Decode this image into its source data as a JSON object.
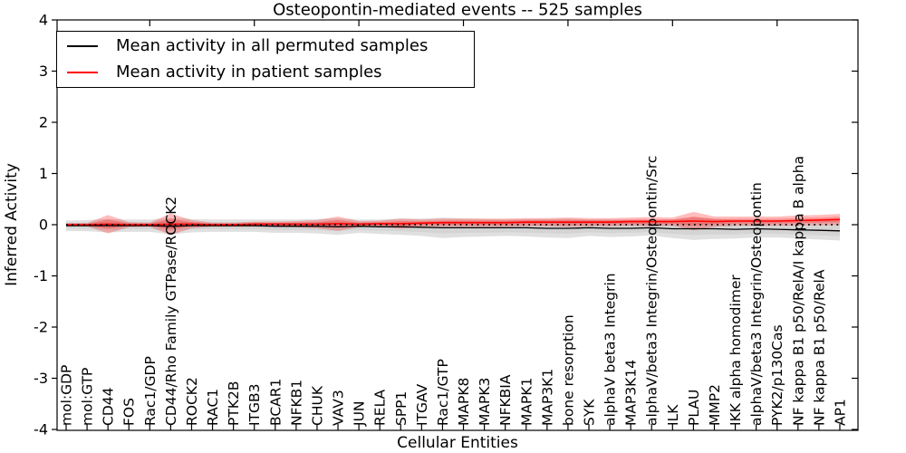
{
  "title": "Osteopontin-mediated events -- 525 samples",
  "axes": {
    "ylabel": "Inferred Activity",
    "xlabel": "Cellular Entities",
    "ytick_labels": [
      "4",
      "3",
      "2",
      "1",
      "0",
      "-1",
      "-2",
      "-3",
      "-4"
    ],
    "ytick_values": [
      4,
      3,
      2,
      1,
      0,
      -1,
      -2,
      -3,
      -4
    ]
  },
  "legend": {
    "items": [
      {
        "label": "Mean activity in all permuted samples",
        "color": "#000000"
      },
      {
        "label": "Mean activity in patient samples",
        "color": "#ff0000"
      }
    ]
  },
  "chart_data": {
    "type": "line",
    "title": "Osteopontin-mediated events -- 525 samples",
    "xlabel": "Cellular Entities",
    "ylabel": "Inferred Activity",
    "ylim": [
      -4,
      4
    ],
    "grid": false,
    "legend_position": "upper left",
    "zero_line": {
      "style": "dotted",
      "y": 0,
      "color": "#000000"
    },
    "band_colors": {
      "permuted": "#000000",
      "patient": "#ff0000"
    },
    "categories": [
      "mol:GDP",
      "mol:GTP",
      "CD44",
      "FOS",
      "Rac1/GDP",
      "CD44/Rho Family GTPase/ROCK2",
      "ROCK2",
      "RAC1",
      "PTK2B",
      "ITGB3",
      "BCAR1",
      "NFKB1",
      "CHUK",
      "VAV3",
      "JUN",
      "RELA",
      "SPP1",
      "ITGAV",
      "Rac1/GTP",
      "MAPK8",
      "MAPK3",
      "NFKBIA",
      "MAPK1",
      "MAP3K1",
      "bone resorption",
      "SYK",
      "alphaV beta3 Integrin",
      "MAP3K14",
      "alphaV/beta3 Integrin/Osteopontin/Src",
      "ILK",
      "PLAU",
      "MMP2",
      "IKK alpha homodimer",
      "alphaV/beta3 Integrin/Osteopontin",
      "PYK2/p130Cas",
      "NF kappa B1 p50/RelA/I kappa B alpha",
      "NF kappa B1 p50/RelA",
      "AP1"
    ],
    "series": [
      {
        "name": "Mean activity in all permuted samples",
        "color": "#000000",
        "values": [
          -0.02,
          -0.02,
          -0.02,
          -0.02,
          -0.02,
          -0.03,
          -0.02,
          -0.02,
          -0.02,
          -0.02,
          -0.03,
          -0.03,
          -0.03,
          -0.04,
          -0.03,
          -0.04,
          -0.04,
          -0.05,
          -0.06,
          -0.06,
          -0.06,
          -0.06,
          -0.06,
          -0.07,
          -0.07,
          -0.06,
          -0.07,
          -0.07,
          -0.06,
          -0.08,
          -0.08,
          -0.08,
          -0.09,
          -0.08,
          -0.09,
          -0.1,
          -0.11,
          -0.12
        ],
        "band_halfwidth": [
          0.1,
          0.11,
          0.13,
          0.12,
          0.12,
          0.16,
          0.13,
          0.12,
          0.12,
          0.12,
          0.13,
          0.13,
          0.14,
          0.16,
          0.13,
          0.14,
          0.16,
          0.17,
          0.2,
          0.18,
          0.17,
          0.16,
          0.17,
          0.18,
          0.19,
          0.16,
          0.17,
          0.16,
          0.15,
          0.18,
          0.22,
          0.2,
          0.18,
          0.17,
          0.16,
          0.17,
          0.18,
          0.19
        ]
      },
      {
        "name": "Mean activity in patient samples",
        "color": "#ff0000",
        "values": [
          0.0,
          0.0,
          0.01,
          0.0,
          0.0,
          0.01,
          0.01,
          0.0,
          0.0,
          0.01,
          0.01,
          0.01,
          0.01,
          0.02,
          0.01,
          0.02,
          0.02,
          0.03,
          0.04,
          0.04,
          0.04,
          0.04,
          0.05,
          0.05,
          0.05,
          0.05,
          0.05,
          0.06,
          0.06,
          0.06,
          0.07,
          0.06,
          0.07,
          0.07,
          0.07,
          0.08,
          0.09,
          0.1
        ],
        "band_halfwidth": [
          0.03,
          0.03,
          0.18,
          0.05,
          0.04,
          0.21,
          0.08,
          0.04,
          0.04,
          0.05,
          0.05,
          0.06,
          0.08,
          0.14,
          0.06,
          0.06,
          0.1,
          0.07,
          0.08,
          0.08,
          0.08,
          0.08,
          0.08,
          0.08,
          0.09,
          0.08,
          0.08,
          0.08,
          0.09,
          0.08,
          0.18,
          0.1,
          0.09,
          0.09,
          0.09,
          0.1,
          0.1,
          0.11
        ]
      }
    ]
  }
}
